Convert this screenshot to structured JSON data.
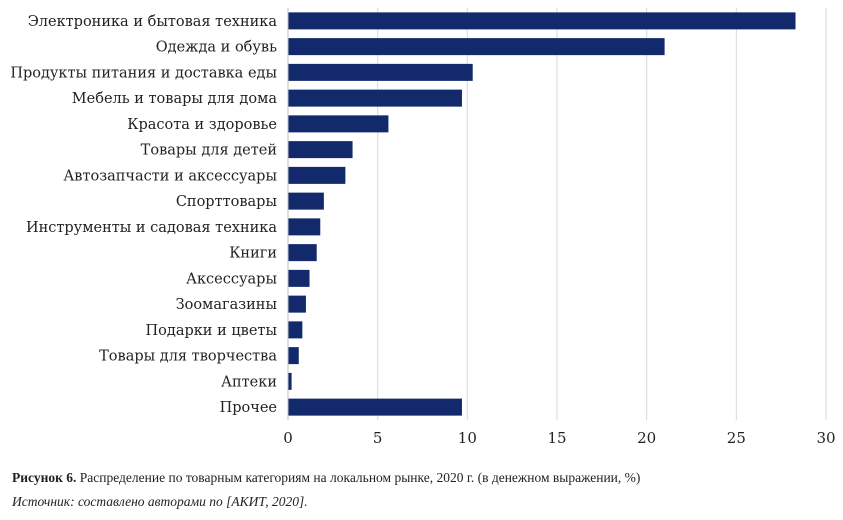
{
  "chart_data": {
    "type": "bar",
    "orientation": "horizontal",
    "categories": [
      "Электроника и бытовая техника",
      "Одежда и обувь",
      "Продукты питания и доставка еды",
      "Мебель и товары для дома",
      "Красота и здоровье",
      "Товары для детей",
      "Автозапчасти и аксессуары",
      "Спорттовары",
      "Инструменты и садовая техника",
      "Книги",
      "Аксессуары",
      "Зоомагазины",
      "Подарки и цветы",
      "Товары для творчества",
      "Аптеки",
      "Прочее"
    ],
    "values": [
      28.3,
      21.0,
      10.3,
      9.7,
      5.6,
      3.6,
      3.2,
      2.0,
      1.8,
      1.6,
      1.2,
      1.0,
      0.8,
      0.6,
      0.2,
      9.7
    ],
    "xlim": [
      0,
      30
    ],
    "xticks": [
      "0",
      "5",
      "10",
      "15",
      "20",
      "25",
      "30"
    ],
    "grid": true,
    "bar_color": "#12296b",
    "grid_color": "#d9d9d9"
  },
  "caption": {
    "label": "Рисунок 6.",
    "text": " Распределение по товарным категориям на локальном рынке, 2020 г. (в денежном выражении, %)",
    "source": "Источник: составлено авторами по [АКИТ, 2020]."
  }
}
